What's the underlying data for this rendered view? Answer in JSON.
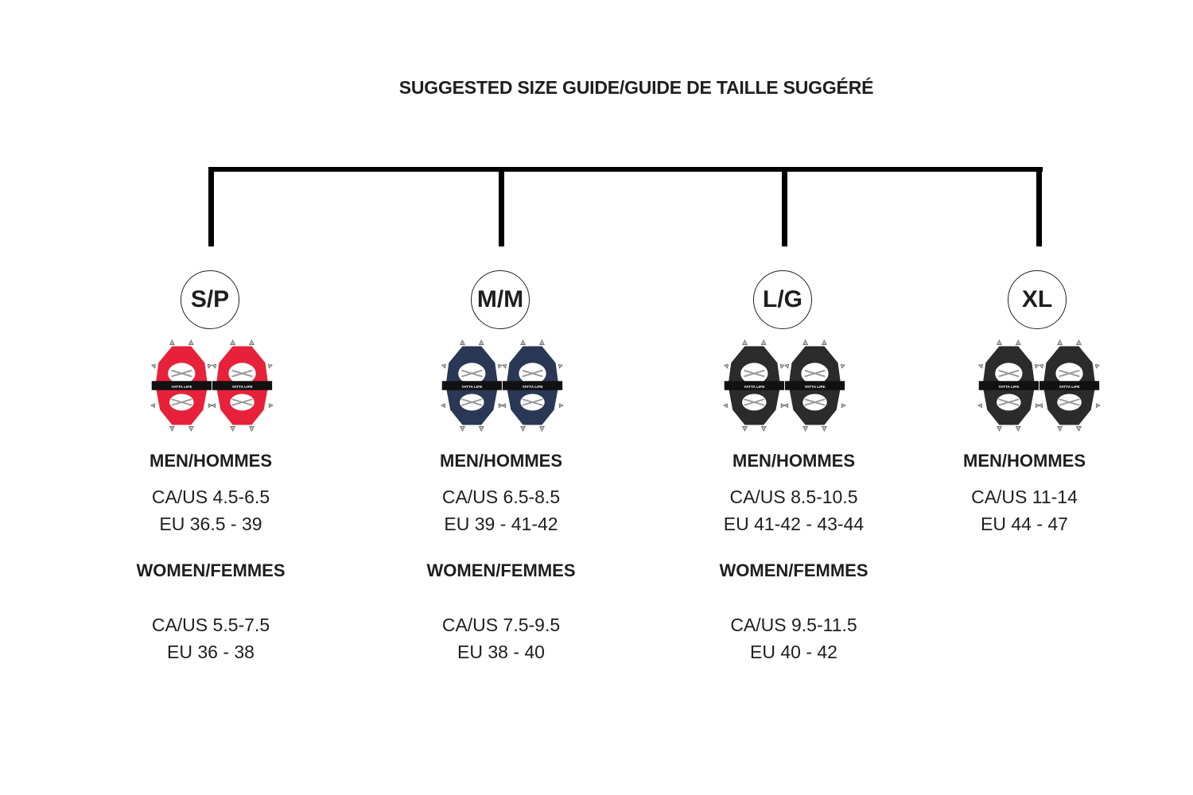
{
  "title": "SUGGESTED SIZE GUIDE/GUIDE DE TAILLE SUGGÉRÉ",
  "brand_on_strap": "YATTA LIFE",
  "sizes": [
    {
      "label": "S/P",
      "color": "#e8213a",
      "men_label": "MEN/HOMMES",
      "men_ca": "CA/US 4.5-6.5",
      "men_eu": "EU 36.5 - 39",
      "women_label": "WOMEN/FEMMES",
      "women_ca": "CA/US 5.5-7.5",
      "women_eu": "EU 36 - 38"
    },
    {
      "label": "M/M",
      "color": "#2a3856",
      "men_label": "MEN/HOMMES",
      "men_ca": "CA/US 6.5-8.5",
      "men_eu": "EU 39 - 41-42",
      "women_label": "WOMEN/FEMMES",
      "women_ca": "CA/US 7.5-9.5",
      "women_eu": "EU 38 - 40"
    },
    {
      "label": "L/G",
      "color": "#2b2b2b",
      "men_label": "MEN/HOMMES",
      "men_ca": "CA/US 8.5-10.5",
      "men_eu": "EU 41-42 - 43-44",
      "women_label": "WOMEN/FEMMES",
      "women_ca": "CA/US 9.5-11.5",
      "women_eu": "EU 40 - 42"
    },
    {
      "label": "XL",
      "color": "#2b2b2b",
      "men_label": "MEN/HOMMES",
      "men_ca": "CA/US 11-14",
      "men_eu": "EU 44 - 47"
    }
  ]
}
